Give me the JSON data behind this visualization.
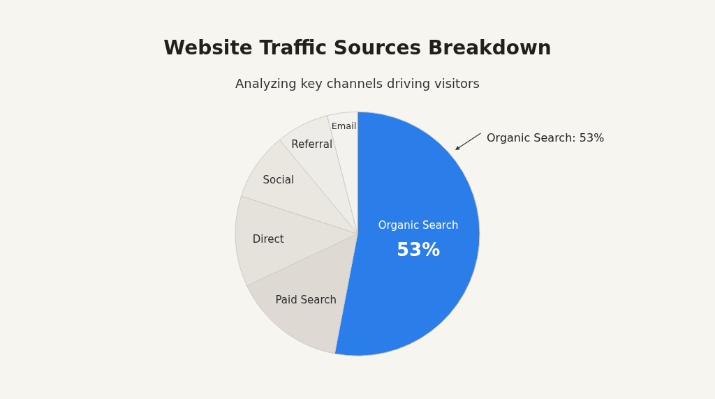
{
  "chart_data": {
    "type": "pie",
    "title": "Website Traffic Sources Breakdown",
    "subtitle": "Analyzing key channels driving visitors",
    "categories": [
      "Organic Search",
      "Paid Search",
      "Direct",
      "Social",
      "Referral",
      "Email"
    ],
    "values": [
      53,
      15,
      12,
      9,
      7,
      4
    ],
    "value_labels": [
      "53%",
      null,
      null,
      null,
      null,
      null
    ],
    "colors": [
      "#2b7de9",
      "#dedad3",
      "#e5e2dc",
      "#eae7e1",
      "#eeece7",
      "#f3f2ee"
    ],
    "annotations": [
      "Organic Search: 53%"
    ],
    "legend": false
  }
}
